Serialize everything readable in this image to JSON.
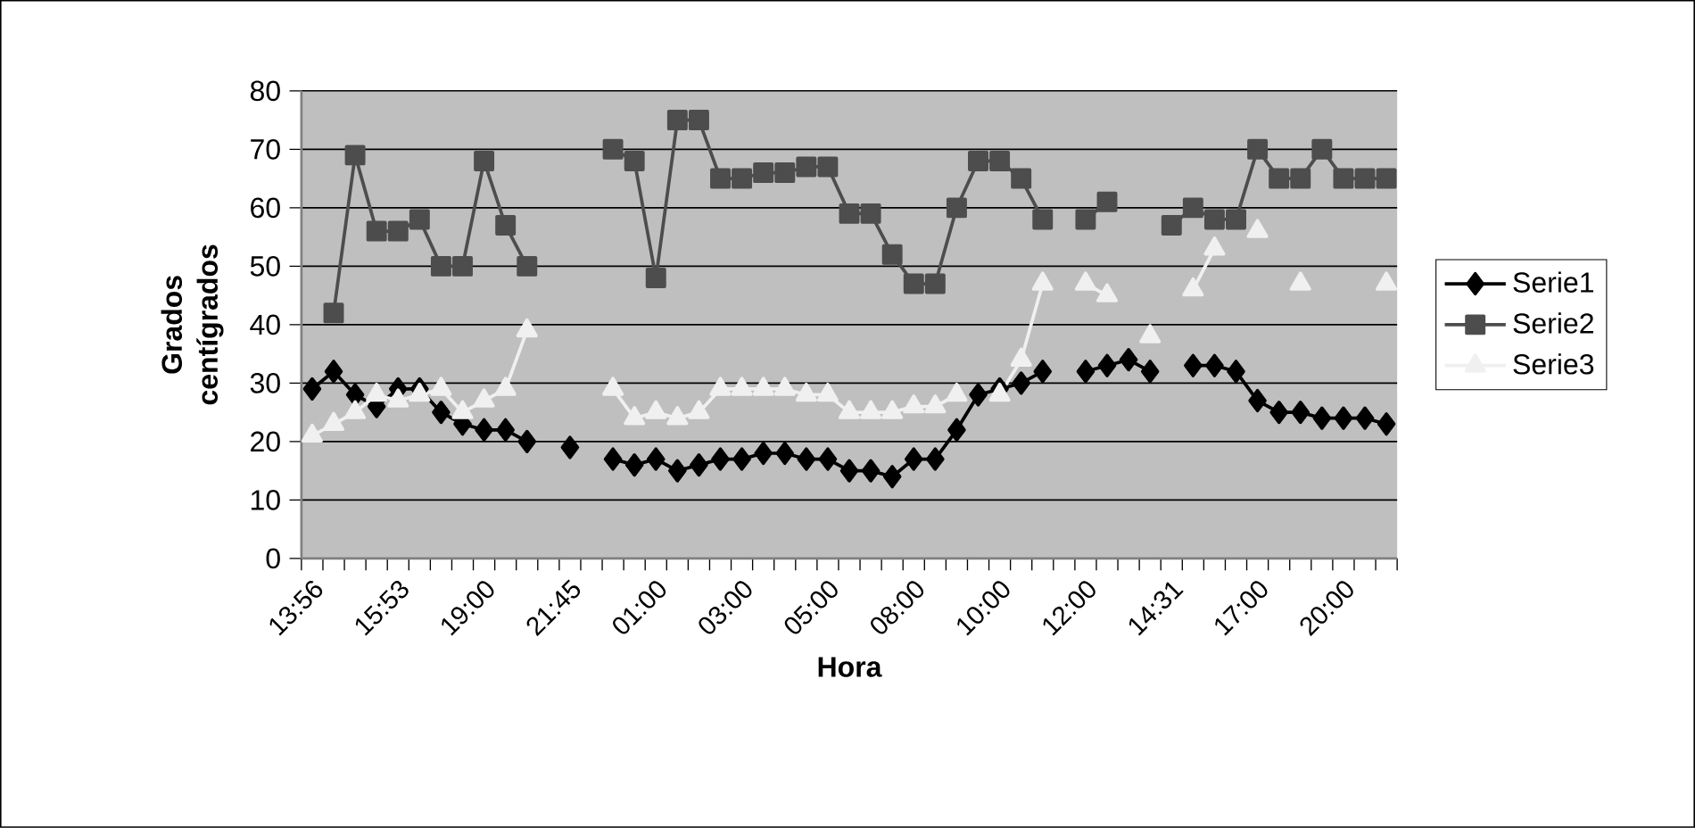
{
  "chart_data": {
    "type": "line",
    "xlabel": "Hora",
    "ylabel": "Grados centígrados",
    "categories": [
      "13:56",
      null,
      null,
      null,
      "15:53",
      null,
      null,
      null,
      "19:00",
      null,
      null,
      null,
      "21:45",
      null,
      null,
      null,
      "01:00",
      null,
      null,
      null,
      "03:00",
      null,
      null,
      null,
      "05:00",
      null,
      null,
      null,
      "08:00",
      null,
      null,
      null,
      "10:00",
      null,
      null,
      null,
      "12:00",
      null,
      null,
      null,
      "14:31",
      null,
      null,
      null,
      "17:00",
      null,
      null,
      null,
      "20:00",
      null,
      null
    ],
    "series": [
      {
        "name": "Serie1",
        "color": "#000000",
        "marker": "diamond",
        "values": [
          29,
          32,
          28,
          26,
          29,
          29,
          25,
          23,
          22,
          22,
          20,
          null,
          19,
          null,
          17,
          16,
          17,
          15,
          16,
          17,
          17,
          18,
          18,
          17,
          17,
          15,
          15,
          14,
          17,
          17,
          22,
          28,
          29,
          30,
          32,
          null,
          32,
          33,
          34,
          32,
          null,
          33,
          33,
          32,
          27,
          25,
          25,
          24,
          24,
          24,
          23
        ]
      },
      {
        "name": "Serie2",
        "color": "#4d4d4d",
        "marker": "square",
        "values": [
          null,
          42,
          69,
          56,
          56,
          58,
          50,
          50,
          68,
          57,
          50,
          null,
          null,
          null,
          70,
          68,
          48,
          75,
          75,
          65,
          65,
          66,
          66,
          67,
          67,
          59,
          59,
          52,
          47,
          47,
          60,
          68,
          68,
          65,
          58,
          null,
          58,
          61,
          null,
          null,
          57,
          60,
          58,
          58,
          70,
          65,
          65,
          70,
          65,
          65,
          65
        ]
      },
      {
        "name": "Serie3",
        "color": "#f0f0f0",
        "marker": "triangle",
        "values": [
          21,
          23,
          25,
          28,
          27,
          28,
          29,
          25,
          27,
          29,
          39,
          null,
          null,
          null,
          29,
          24,
          25,
          24,
          25,
          29,
          29,
          29,
          29,
          28,
          28,
          25,
          25,
          25,
          26,
          26,
          28,
          null,
          28,
          34,
          47,
          null,
          47,
          45,
          null,
          38,
          null,
          46,
          53,
          null,
          56,
          null,
          47,
          null,
          null,
          null,
          47
        ]
      }
    ],
    "ylim": [
      0,
      80
    ],
    "yticks": [
      0,
      10,
      20,
      30,
      40,
      50,
      60,
      70,
      80
    ],
    "grid": "y",
    "legend": "right"
  }
}
